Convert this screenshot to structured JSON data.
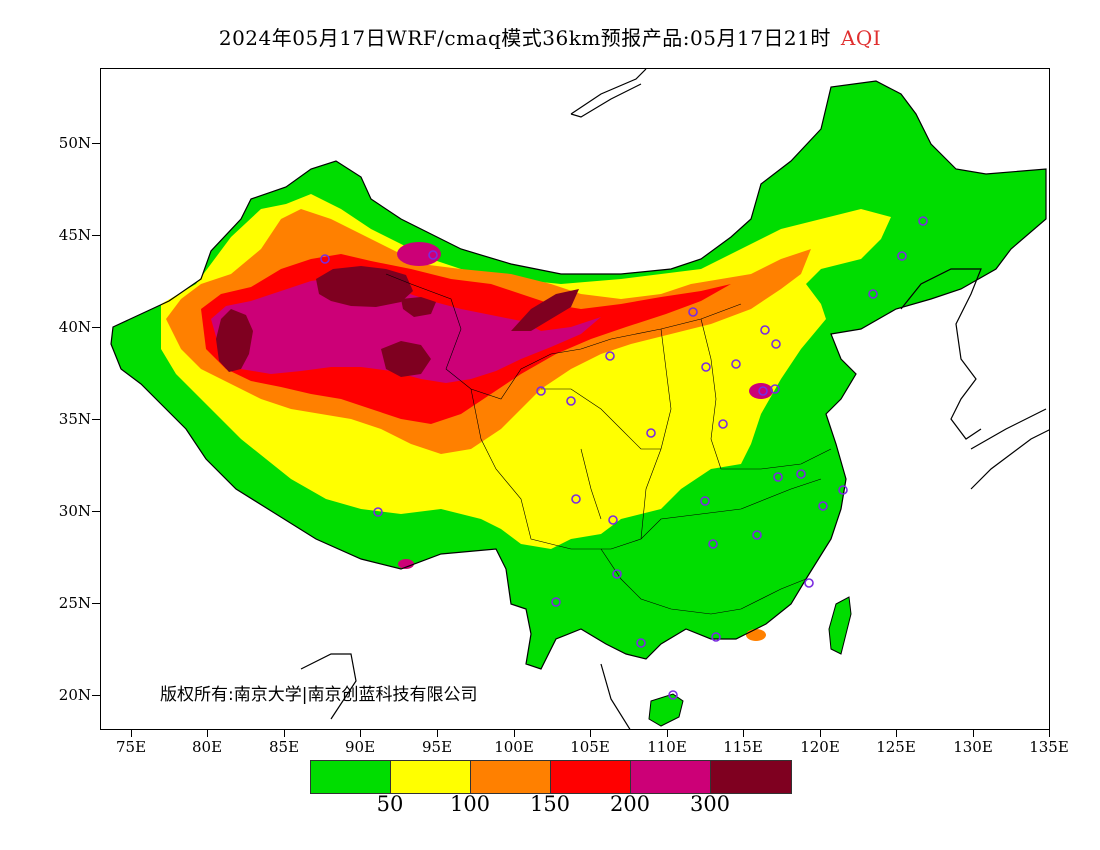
{
  "title": {
    "main": "2024年05月17日WRF/cmaq模式36km预报产品:05月17日21时",
    "variable": "AQI"
  },
  "copyright": "版权所有:南京大学|南京创蓝科技有限公司",
  "latitude_labels": [
    "50N",
    "45N",
    "40N",
    "35N",
    "30N",
    "25N",
    "20N"
  ],
  "longitude_labels": [
    "75E",
    "80E",
    "85E",
    "90E",
    "95E",
    "100E",
    "105E",
    "110E",
    "115E",
    "120E",
    "125E",
    "130E",
    "135E"
  ],
  "legend": {
    "colors": [
      "#00dd00",
      "#ffff00",
      "#ff8000",
      "#ff0000",
      "#cc0077",
      "#7f0020"
    ],
    "labels": [
      "50",
      "100",
      "150",
      "200",
      "300"
    ]
  },
  "colors": {
    "good": "#00dd00",
    "moderate": "#ffff00",
    "unhealthy_sensitive": "#ff8000",
    "unhealthy": "#ff0000",
    "very_unhealthy": "#cc0077",
    "hazardous": "#7f0020",
    "station_marker": "#7a2be0",
    "title_accent": "#e03030"
  },
  "map_extent": {
    "lon_range": [
      73,
      135
    ],
    "lat_range": [
      18,
      54
    ]
  }
}
